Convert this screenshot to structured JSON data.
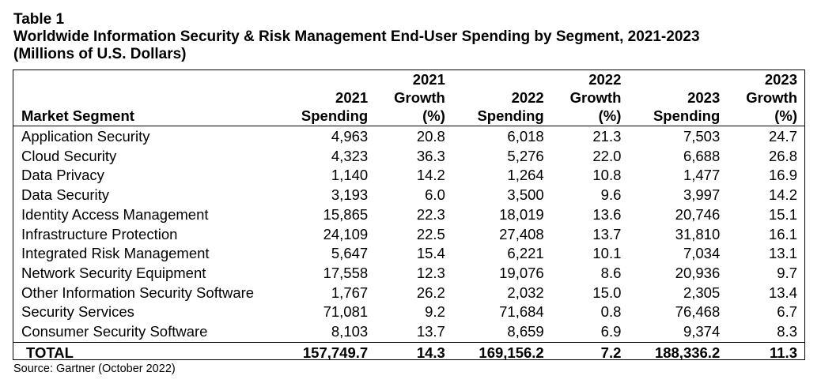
{
  "header": {
    "label": "Table 1",
    "title": "Worldwide Information Security & Risk Management End-User Spending by Segment, 2021-2023",
    "units": "(Millions of U.S. Dollars)"
  },
  "columns": {
    "segment": "Market Segment",
    "spend2021": [
      "2021",
      "Spending"
    ],
    "growth2021": [
      "2021",
      "Growth",
      "(%)"
    ],
    "spend2022": [
      "2022",
      "Spending"
    ],
    "growth2022": [
      "2022",
      "Growth",
      "(%)"
    ],
    "spend2023": [
      "2023",
      "Spending"
    ],
    "growth2023": [
      "2023",
      "Growth",
      "(%)"
    ]
  },
  "rows": [
    [
      "Application Security",
      "4,963",
      "20.8",
      "6,018",
      "21.3",
      "7,503",
      "24.7"
    ],
    [
      "Cloud Security",
      "4,323",
      "36.3",
      "5,276",
      "22.0",
      "6,688",
      "26.8"
    ],
    [
      "Data Privacy",
      "1,140",
      "14.2",
      "1,264",
      "10.8",
      "1,477",
      "16.9"
    ],
    [
      "Data Security",
      "3,193",
      "6.0",
      "3,500",
      "9.6",
      "3,997",
      "14.2"
    ],
    [
      "Identity Access Management",
      "15,865",
      "22.3",
      "18,019",
      "13.6",
      "20,746",
      "15.1"
    ],
    [
      "Infrastructure Protection",
      "24,109",
      "22.5",
      "27,408",
      "13.7",
      "31,810",
      "16.1"
    ],
    [
      "Integrated Risk Management",
      "5,647",
      "15.4",
      "6,221",
      "10.1",
      "7,034",
      "13.1"
    ],
    [
      "Network Security Equipment",
      "17,558",
      "12.3",
      "19,076",
      "8.6",
      "20,936",
      "9.7"
    ],
    [
      "Other Information Security Software",
      "1,767",
      "26.2",
      "2,032",
      "15.0",
      "2,305",
      "13.4"
    ],
    [
      "Security Services",
      "71,081",
      "9.2",
      "71,684",
      "0.8",
      "76,468",
      "6.7"
    ],
    [
      "Consumer Security Software",
      "8,103",
      "13.7",
      "8,659",
      "6.9",
      "9,374",
      "8.3"
    ]
  ],
  "total": [
    "TOTAL",
    "157,749.7",
    "14.3",
    "169,156.2",
    "7.2",
    "188,336.2",
    "11.3"
  ],
  "source": "Source: Gartner (October 2022)"
}
